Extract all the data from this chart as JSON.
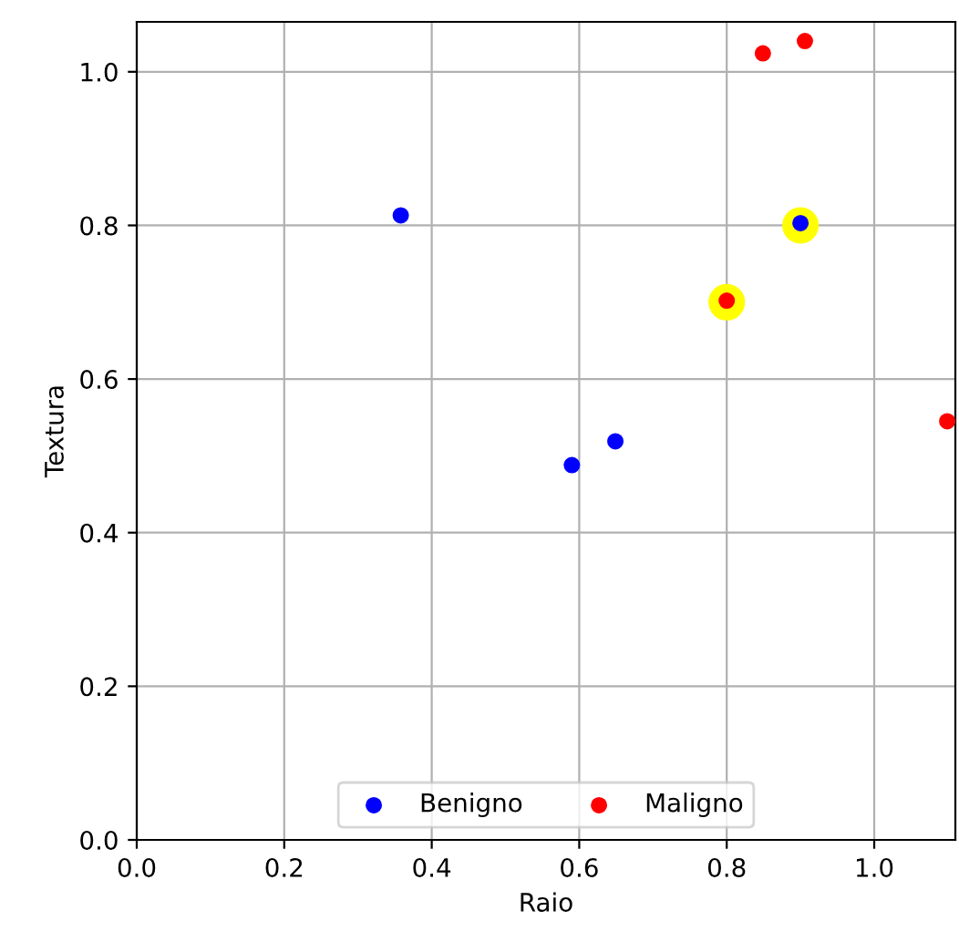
{
  "chart_data": {
    "type": "scatter",
    "xlabel": "Raio",
    "ylabel": "Textura",
    "series": [
      {
        "color": "#ffff00",
        "x": [
          0.8,
          0.9
        ],
        "values": [
          0.7,
          0.8
        ]
      },
      {
        "name": "Benigno",
        "color": "#0000ff",
        "x": [
          0.358,
          0.59,
          0.649,
          0.9
        ],
        "values": [
          0.813,
          0.488,
          0.519,
          0.803
        ]
      },
      {
        "name": "Maligno",
        "color": "#ff0000",
        "x": [
          0.849,
          0.906,
          0.8,
          1.099
        ],
        "values": [
          1.024,
          1.04,
          0.702,
          0.545
        ]
      }
    ],
    "xlim": [
      0.0,
      1.11
    ],
    "ylim": [
      0.0,
      1.065
    ],
    "xticks": [
      {
        "value": 0.0,
        "label": "0.0"
      },
      {
        "value": 0.2,
        "label": "0.2"
      },
      {
        "value": 0.4,
        "label": "0.4"
      },
      {
        "value": 0.6,
        "label": "0.6"
      },
      {
        "value": 0.8,
        "label": "0.8"
      },
      {
        "value": 1.0,
        "label": "1.0"
      }
    ],
    "yticks": [
      {
        "value": 0.0,
        "label": "0.0"
      },
      {
        "value": 0.2,
        "label": "0.2"
      },
      {
        "value": 0.4,
        "label": "0.4"
      },
      {
        "value": 0.6,
        "label": "0.6"
      },
      {
        "value": 0.8,
        "label": "0.8"
      },
      {
        "value": 1.0,
        "label": "1.0"
      }
    ],
    "grid": true,
    "legend": "bottom",
    "marker": "circle"
  }
}
